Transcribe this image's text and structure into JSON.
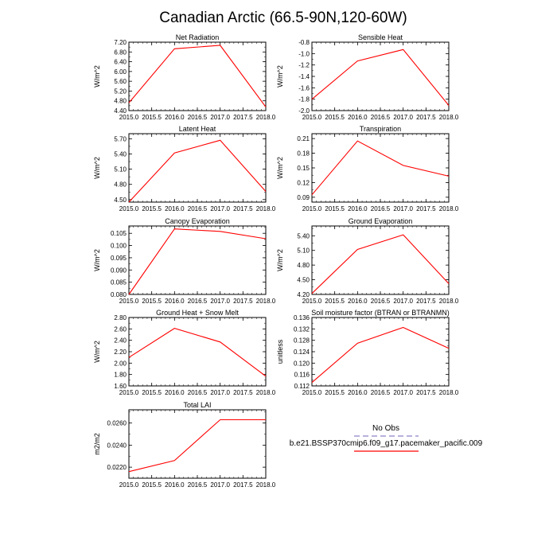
{
  "page": {
    "title": "Canadian Arctic (66.5-90N,120-60W)"
  },
  "legend": {
    "obs_label": "No Obs",
    "obs_color": "#b8b0dc",
    "model_label": "b.e21.BSSP370cmip6.f09_g17.pacemaker_pacific.009",
    "model_color": "#ff0000"
  },
  "chart_data": [
    {
      "type": "line",
      "title": "Net Radiation",
      "ylabel": "W/m^2",
      "x": [
        2015,
        2016,
        2017,
        2018
      ],
      "xlim": [
        2015,
        2018
      ],
      "xticks": [
        "2015.0",
        "2015.5",
        "2016.0",
        "2016.5",
        "2017.0",
        "2017.5",
        "2018.0"
      ],
      "ylim": [
        4.4,
        7.2
      ],
      "yticks": [
        "4.40",
        "4.80",
        "5.20",
        "5.60",
        "6.00",
        "6.40",
        "6.80",
        "7.20"
      ],
      "series": [
        {
          "values": [
            4.72,
            6.93,
            7.07,
            4.55
          ]
        }
      ]
    },
    {
      "type": "line",
      "title": "Sensible Heat",
      "ylabel": "W/m^2",
      "x": [
        2015,
        2016,
        2017,
        2018
      ],
      "xlim": [
        2015,
        2018
      ],
      "xticks": [
        "2015.0",
        "2015.5",
        "2016.0",
        "2016.5",
        "2017.0",
        "2017.5",
        "2018.0"
      ],
      "ylim": [
        -2.0,
        -0.8
      ],
      "yticks": [
        "-2.0",
        "-1.8",
        "-1.6",
        "-1.4",
        "-1.2",
        "-1.0",
        "-0.8"
      ],
      "series": [
        {
          "values": [
            -1.8,
            -1.13,
            -0.93,
            -1.91
          ]
        }
      ]
    },
    {
      "type": "line",
      "title": "Latent Heat",
      "ylabel": "W/m^2",
      "x": [
        2015,
        2016,
        2017,
        2018
      ],
      "xlim": [
        2015,
        2018
      ],
      "xticks": [
        "2015.0",
        "2015.5",
        "2016.0",
        "2016.5",
        "2017.0",
        "2017.5",
        "2018.0"
      ],
      "ylim": [
        4.45,
        5.8
      ],
      "yticks": [
        "4.50",
        "4.80",
        "5.10",
        "5.40",
        "5.70"
      ],
      "series": [
        {
          "values": [
            4.45,
            5.42,
            5.67,
            4.66
          ]
        }
      ]
    },
    {
      "type": "line",
      "title": "Transpiration",
      "ylabel": "W/m^2",
      "x": [
        2015,
        2016,
        2017,
        2018
      ],
      "xlim": [
        2015,
        2018
      ],
      "xticks": [
        "2015.0",
        "2015.5",
        "2016.0",
        "2016.5",
        "2017.0",
        "2017.5",
        "2018.0"
      ],
      "ylim": [
        0.08,
        0.22
      ],
      "yticks": [
        "0.09",
        "0.12",
        "0.15",
        "0.18",
        "0.21"
      ],
      "series": [
        {
          "values": [
            0.095,
            0.205,
            0.155,
            0.133
          ]
        }
      ]
    },
    {
      "type": "line",
      "title": "Canopy Evaporation",
      "ylabel": "W/m^2",
      "x": [
        2015,
        2016,
        2017,
        2018
      ],
      "xlim": [
        2015,
        2018
      ],
      "xticks": [
        "2015.0",
        "2015.5",
        "2016.0",
        "2016.5",
        "2017.0",
        "2017.5",
        "2018.0"
      ],
      "ylim": [
        0.08,
        0.108
      ],
      "yticks": [
        "0.080",
        "0.085",
        "0.090",
        "0.095",
        "0.100",
        "0.105"
      ],
      "series": [
        {
          "values": [
            0.08,
            0.1068,
            0.1058,
            0.1028
          ]
        }
      ]
    },
    {
      "type": "line",
      "title": "Ground Evaporation",
      "ylabel": "W/m^2",
      "x": [
        2015,
        2016,
        2017,
        2018
      ],
      "xlim": [
        2015,
        2018
      ],
      "xticks": [
        "2015.0",
        "2015.5",
        "2016.0",
        "2016.5",
        "2017.0",
        "2017.5",
        "2018.0"
      ],
      "ylim": [
        4.2,
        5.6
      ],
      "yticks": [
        "4.20",
        "4.50",
        "4.80",
        "5.10",
        "5.40"
      ],
      "series": [
        {
          "values": [
            4.22,
            5.12,
            5.42,
            4.42
          ]
        }
      ]
    },
    {
      "type": "line",
      "title": "Ground Heat + Snow Melt",
      "ylabel": "W/m^2",
      "x": [
        2015,
        2016,
        2017,
        2018
      ],
      "xlim": [
        2015,
        2018
      ],
      "xticks": [
        "2015.0",
        "2015.5",
        "2016.0",
        "2016.5",
        "2017.0",
        "2017.5",
        "2018.0"
      ],
      "ylim": [
        1.6,
        2.8
      ],
      "yticks": [
        "1.60",
        "1.80",
        "2.00",
        "2.20",
        "2.40",
        "2.60",
        "2.80"
      ],
      "series": [
        {
          "values": [
            2.1,
            2.61,
            2.37,
            1.77
          ]
        }
      ]
    },
    {
      "type": "line",
      "title": "Soil moisture factor (BTRAN or BTRANMN)",
      "ylabel": "unitless",
      "x": [
        2015,
        2016,
        2017,
        2018
      ],
      "xlim": [
        2015,
        2018
      ],
      "xticks": [
        "2015.0",
        "2015.5",
        "2016.0",
        "2016.5",
        "2017.0",
        "2017.5",
        "2018.0"
      ],
      "ylim": [
        0.112,
        0.136
      ],
      "yticks": [
        "0.112",
        "0.116",
        "0.120",
        "0.124",
        "0.128",
        "0.132",
        "0.136"
      ],
      "series": [
        {
          "values": [
            0.1132,
            0.127,
            0.1325,
            0.1252
          ]
        }
      ]
    },
    {
      "type": "line",
      "title": "Total LAI",
      "ylabel": "m2/m2",
      "x": [
        2015,
        2016,
        2017,
        2018
      ],
      "xlim": [
        2015,
        2018
      ],
      "xticks": [
        "2015.0",
        "2015.5",
        "2016.0",
        "2016.5",
        "2017.0",
        "2017.5",
        "2018.0"
      ],
      "ylim": [
        0.021,
        0.0272
      ],
      "yticks": [
        "0.0220",
        "0.0240",
        "0.0260"
      ],
      "series": [
        {
          "values": [
            0.0216,
            0.0226,
            0.0263,
            0.0263
          ]
        }
      ]
    }
  ]
}
